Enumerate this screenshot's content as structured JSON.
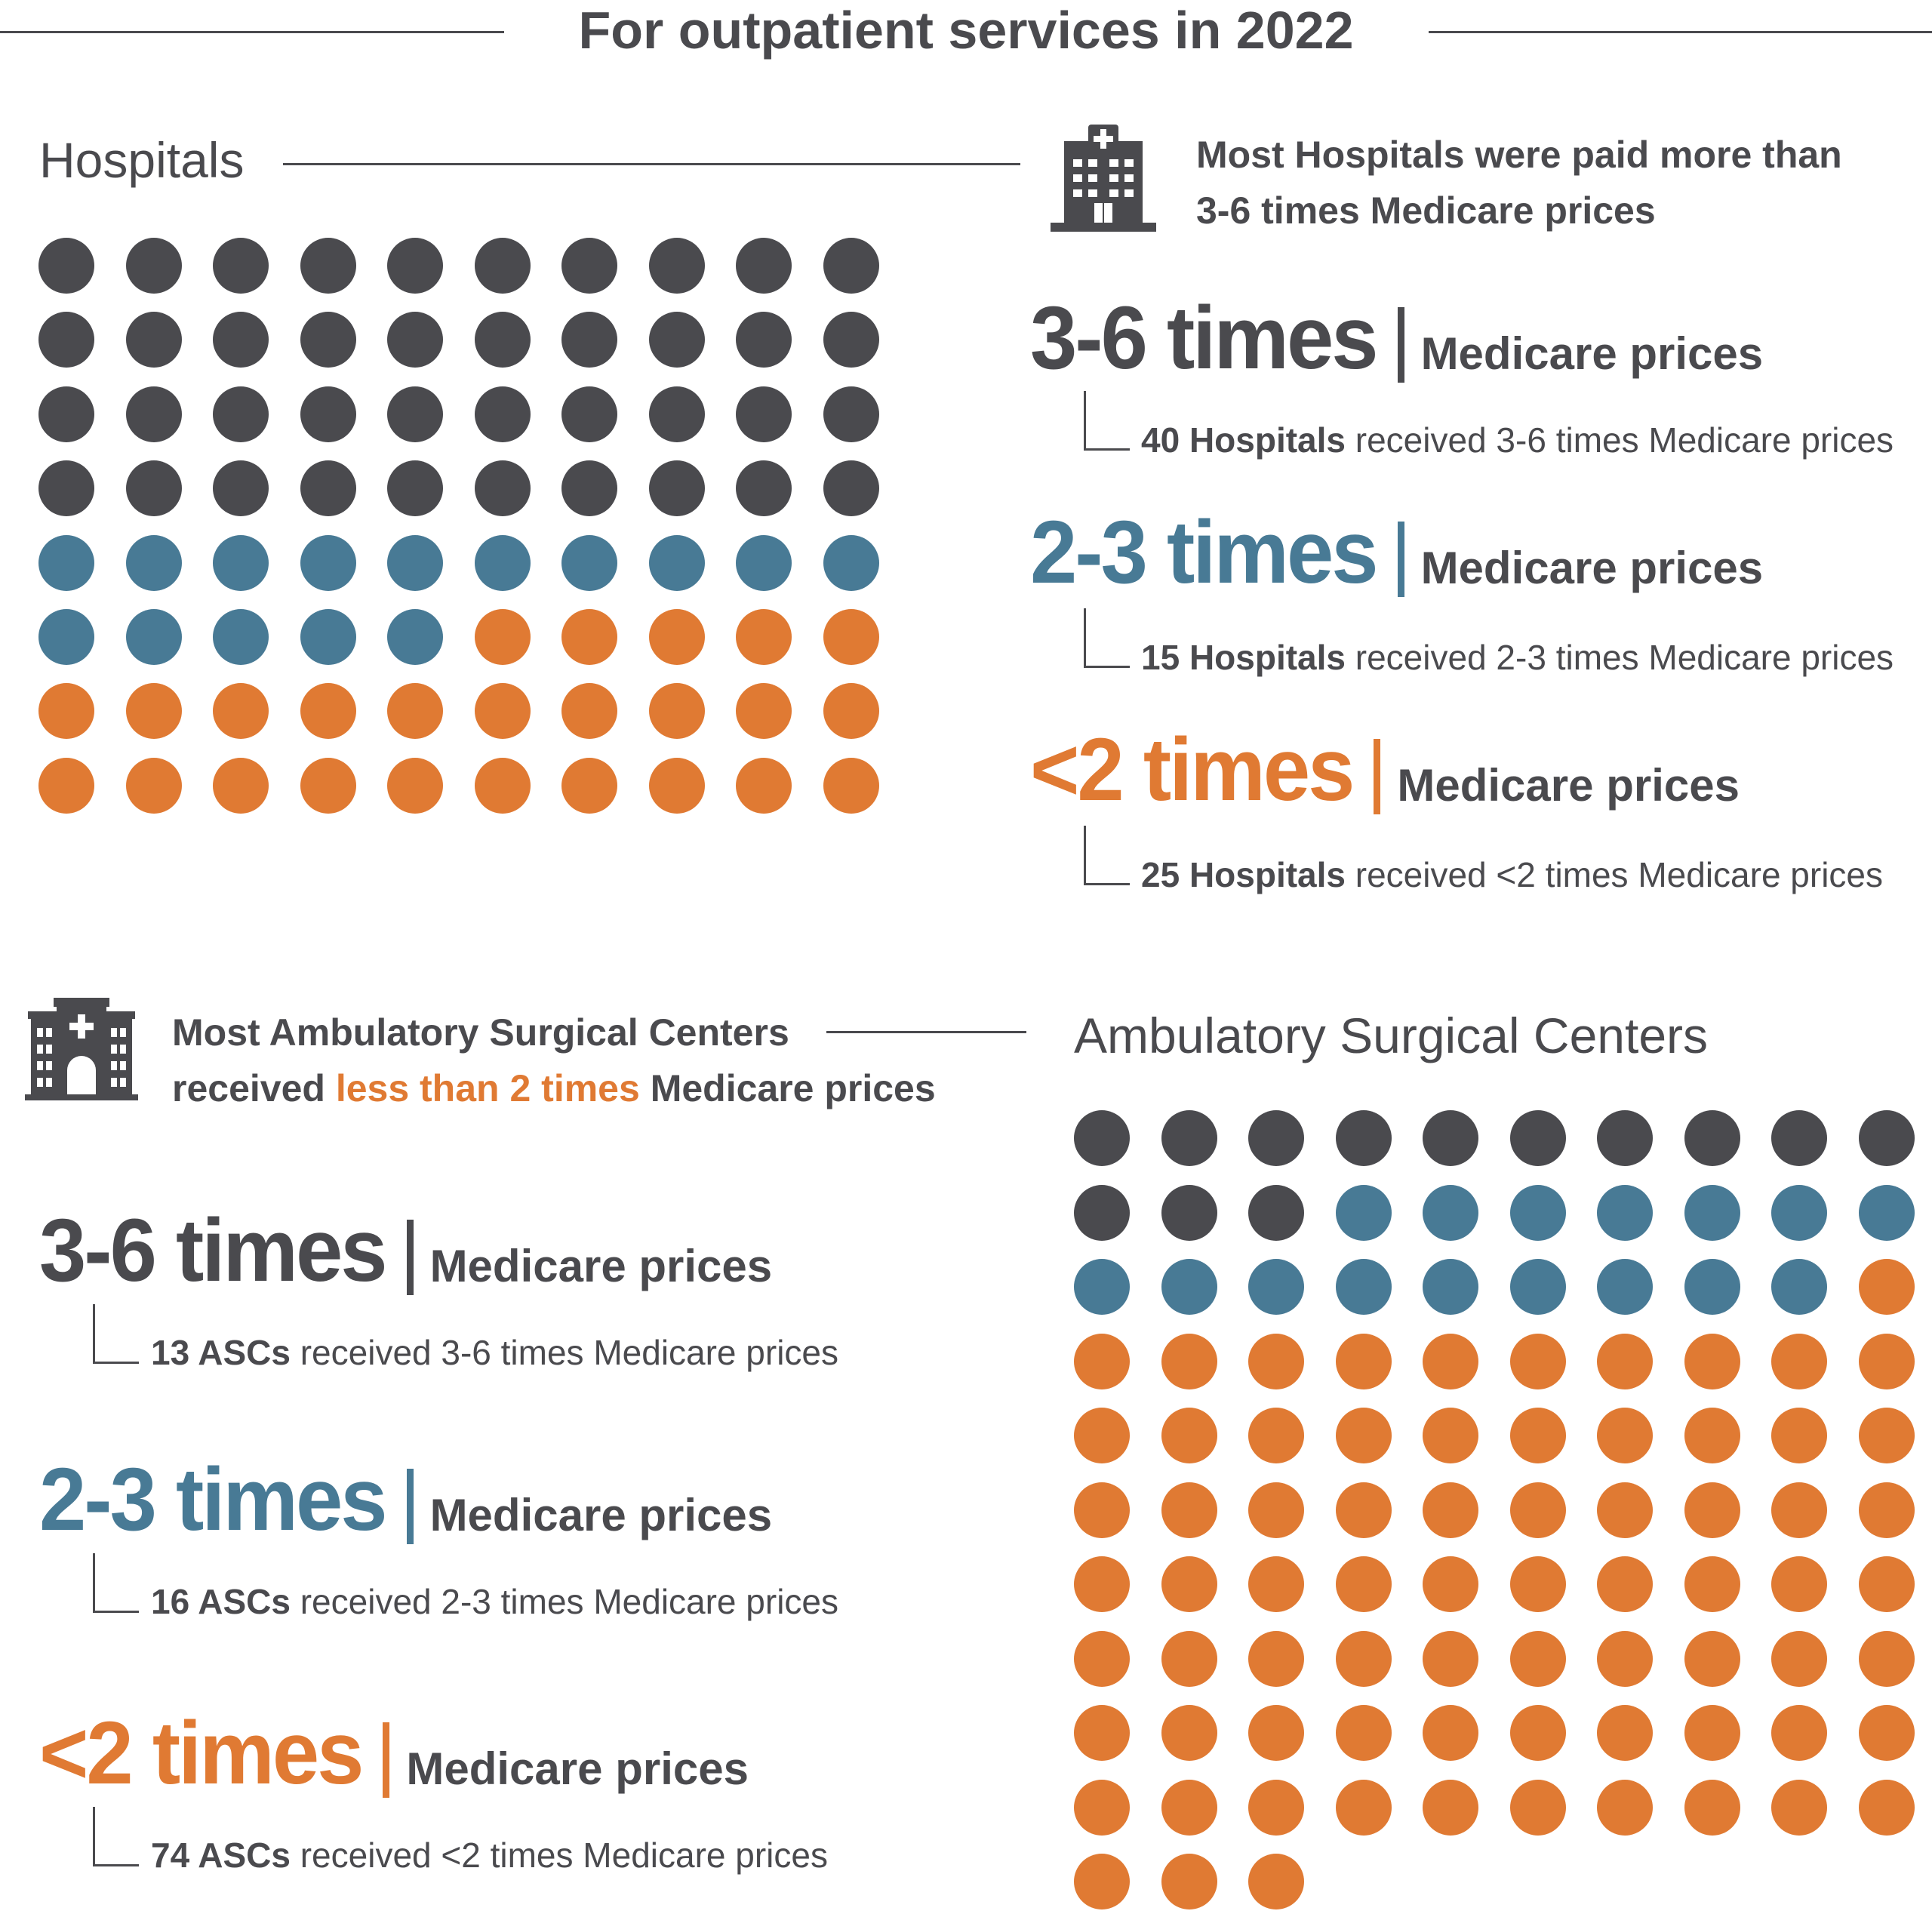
{
  "title": "For outpatient services in 2022",
  "colors": {
    "dark": "#4a4a4e",
    "blue": "#487a95",
    "orange": "#e07a33"
  },
  "hospitals": {
    "section_title": "Hospitals",
    "icon": "hospital-building-icon",
    "intro_line1": "Most Hospitals were paid more than",
    "intro_line2": "3-6 times Medicare prices",
    "categories": [
      {
        "big": "3-6 times",
        "unit": "Medicare prices",
        "count": "40 Hospitals",
        "desc": " received 3-6 times Medicare prices",
        "n": 40,
        "color": "dark"
      },
      {
        "big": "2-3 times",
        "unit": "Medicare prices",
        "count": "15 Hospitals",
        "desc": " received 2-3 times Medicare prices",
        "n": 15,
        "color": "blue"
      },
      {
        "big": "<2 times",
        "unit": "Medicare prices",
        "count": "25 Hospitals",
        "desc": " received <2 times Medicare prices",
        "n": 25,
        "color": "orange"
      }
    ]
  },
  "ascs": {
    "section_title": "Ambulatory Surgical Centers",
    "icon": "surgical-center-building-icon",
    "intro_line1": "Most Ambulatory Surgical Centers",
    "intro_pre": "received ",
    "intro_accent": "less than 2 times",
    "intro_post": " Medicare prices",
    "categories": [
      {
        "big": "3-6 times",
        "unit": "Medicare prices",
        "count": "13 ASCs",
        "desc": " received 3-6 times Medicare prices",
        "n": 13,
        "color": "dark"
      },
      {
        "big": "2-3 times",
        "unit": "Medicare prices",
        "count": "16 ASCs",
        "desc": " received 2-3 times Medicare prices",
        "n": 16,
        "color": "blue"
      },
      {
        "big": "<2 times",
        "unit": "Medicare prices",
        "count": "74 ASCs",
        "desc": " received <2 times Medicare prices",
        "n": 74,
        "color": "orange"
      }
    ]
  }
}
